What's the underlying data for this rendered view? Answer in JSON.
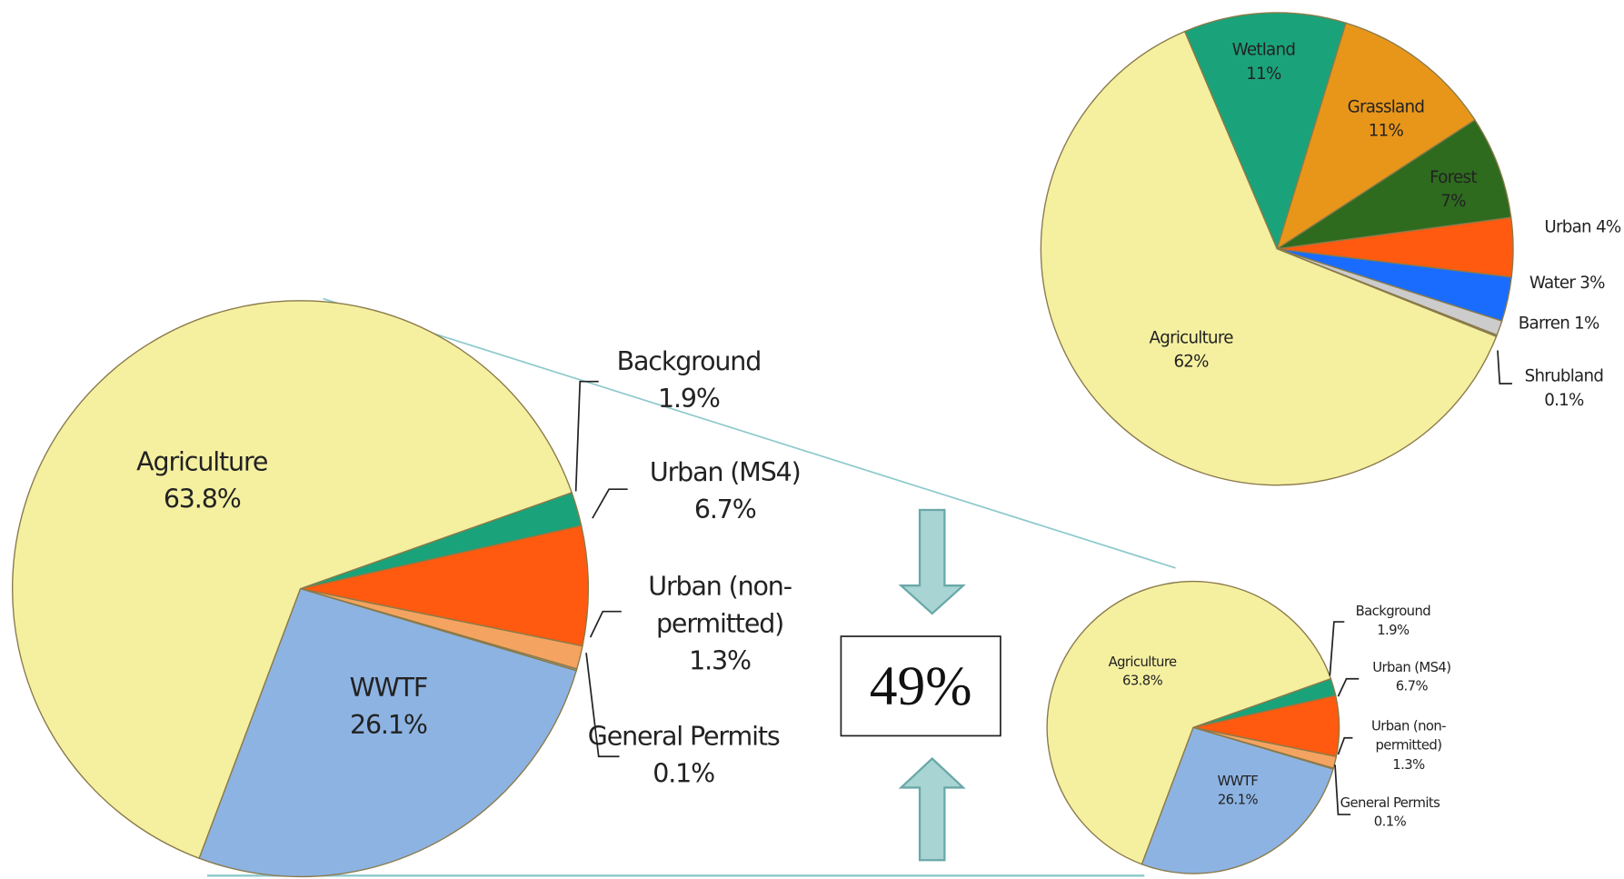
{
  "chart_data": [
    {
      "type": "pie",
      "categories": [
        "Background",
        "Urban (MS4)",
        "Urban (non-permitted)",
        "General Permits",
        "WWTF",
        "Agriculture"
      ],
      "values": [
        1.9,
        6.7,
        1.3,
        0.1,
        26.1,
        63.8
      ],
      "value_labels": [
        "1.9%",
        "6.7%",
        "1.3%",
        "0.1%",
        "26.1%",
        "63.8%"
      ],
      "colors": [
        "#1aa37a",
        "#ff5a0f",
        "#f4a460",
        "#999999",
        "#8db3e2",
        "#f5f0a0"
      ]
    },
    {
      "type": "pie",
      "categories": [
        "Wetland",
        "Grassland",
        "Forest",
        "Urban",
        "Water",
        "Barren",
        "Shrubland",
        "Agriculture"
      ],
      "values": [
        11,
        11,
        7,
        4,
        3,
        1,
        0.1,
        62
      ],
      "value_labels": [
        "11%",
        "11%",
        "7%",
        "4%",
        "3%",
        "1%",
        "0.1%",
        "62%"
      ],
      "colors": [
        "#1aa37a",
        "#e8961a",
        "#2e6b1e",
        "#ff5a0f",
        "#1a6cff",
        "#cccccc",
        "#999999",
        "#f5f0a0"
      ]
    },
    {
      "type": "pie",
      "categories": [
        "Background",
        "Urban (MS4)",
        "Urban (non-permitted)",
        "General Permits",
        "WWTF",
        "Agriculture"
      ],
      "values": [
        1.9,
        6.7,
        1.3,
        0.1,
        26.1,
        63.8
      ],
      "value_labels": [
        "1.9%",
        "6.7%",
        "1.3%",
        "0.1%",
        "26.1%",
        "63.8%"
      ],
      "colors": [
        "#1aa37a",
        "#ff5a0f",
        "#f4a460",
        "#999999",
        "#8db3e2",
        "#f5f0a0"
      ]
    }
  ],
  "annotation": "49%"
}
